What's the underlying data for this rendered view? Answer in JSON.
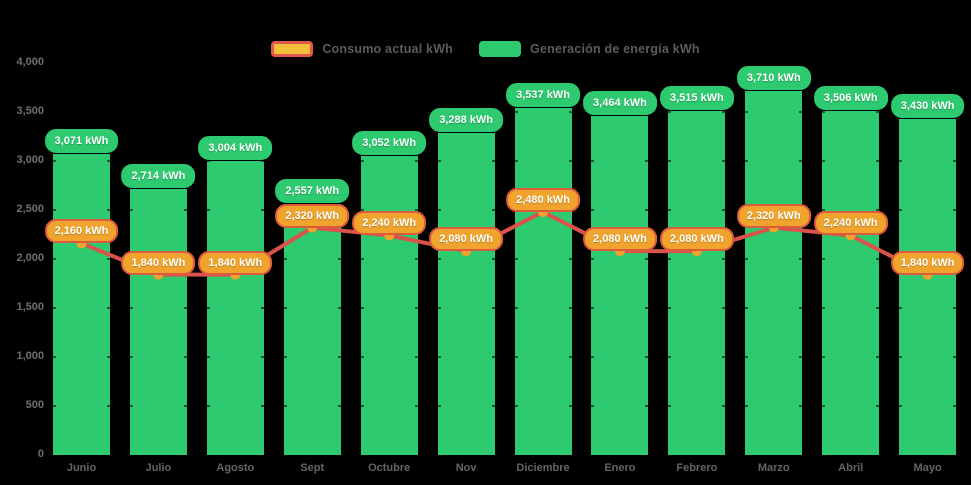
{
  "legend": {
    "items": [
      {
        "label": "Consumo actual kWh",
        "marker_fill": "#f2bf3a",
        "marker_stroke": "#e2574c"
      },
      {
        "label": "Generación de energía kWh",
        "marker_fill": "#2dca6f",
        "marker_stroke": "#2dca6f"
      }
    ]
  },
  "chart_data": {
    "type": "bar",
    "subtype": "bar-line-combo",
    "title": "",
    "xlabel": "",
    "ylabel": "",
    "background": "#000000",
    "grid": false,
    "legend_position": "top-center",
    "categories": [
      "Junio",
      "Julio",
      "Agosto",
      "Sept",
      "Octubre",
      "Nov",
      "Diciembre",
      "Enero",
      "Febrero",
      "Marzo",
      "Abril",
      "Mayo"
    ],
    "ylim": [
      0,
      4000
    ],
    "y_ticks": [
      0,
      500,
      1000,
      1500,
      2000,
      2500,
      3000,
      3500,
      4000
    ],
    "y_tick_labels": [
      "0",
      "500",
      "1,000",
      "1,500",
      "2,000",
      "2,500",
      "3,000",
      "3,500",
      "4,000"
    ],
    "series": [
      {
        "name": "Generación de energía kWh",
        "type": "bar",
        "color": "#2dca6f",
        "label_fill": "#2dca6f",
        "label_stroke": "#2dca6f",
        "values": [
          3071,
          2714,
          3004,
          2557,
          3052,
          3288,
          3537,
          3464,
          3515,
          3710,
          3506,
          3430
        ],
        "point_labels": [
          "3,071 kWh",
          "2,714 kWh",
          "3,004 kWh",
          "2,557 kWh",
          "3,052 kWh",
          "3,288 kWh",
          "3,537 kWh",
          "3,464 kWh",
          "3,515 kWh",
          "3,710 kWh",
          "3,506 kWh",
          "3,430 kWh"
        ]
      },
      {
        "name": "Consumo actual kWh",
        "type": "line",
        "color": "#d9534a",
        "point_color": "#f0a42d",
        "label_fill": "#f0a42d",
        "label_stroke": "#dd5a3f",
        "values": [
          2160,
          1840,
          1840,
          2320,
          2240,
          2080,
          2480,
          2080,
          2080,
          2320,
          2240,
          1840
        ],
        "point_labels": [
          "2,160 kWh",
          "1,840 kWh",
          "1,840 kWh",
          "2,320 kWh",
          "2,240 kWh",
          "2,080 kWh",
          "2,480 kWh",
          "2,080 kWh",
          "2,080 kWh",
          "2,320 kWh",
          "2,240 kWh",
          "1,840 kWh"
        ]
      }
    ]
  }
}
